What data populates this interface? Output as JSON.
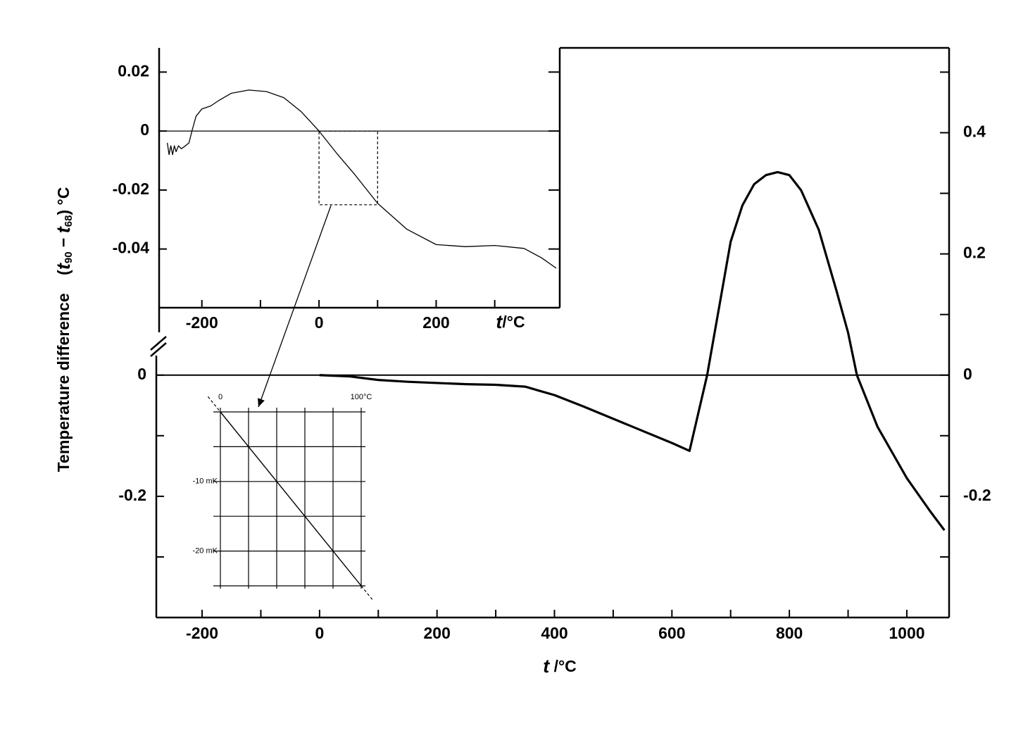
{
  "chart_data": [
    {
      "type": "line",
      "xlabel_parts": [
        "t",
        " /°C"
      ],
      "ylabel": "Temperature difference",
      "ylabel_parts": [
        "(",
        "t",
        "90",
        " − ",
        "t",
        "68",
        ") °C"
      ],
      "xlim": [
        -278,
        1072
      ],
      "ylim": [
        -0.4,
        0.54
      ],
      "y2lim": [
        -0.4,
        0.54
      ],
      "xticks": [
        -200,
        {
          "value": -100,
          "label": null
        },
        0,
        {
          "value": 100,
          "label": null
        },
        200,
        {
          "value": 300,
          "label": null
        },
        400,
        {
          "value": 500,
          "label": null
        },
        600,
        {
          "value": 700,
          "label": null
        },
        800,
        {
          "value": 900,
          "label": null
        },
        1000
      ],
      "yticks": [
        {
          "value": -0.3,
          "label": null
        },
        -0.2,
        {
          "value": -0.1,
          "label": null
        },
        0
      ],
      "y2ticks": [
        {
          "value": -0.3,
          "label": null
        },
        -0.2,
        {
          "value": -0.1,
          "label": null
        },
        0,
        {
          "value": 0.1,
          "label": null
        },
        0.2,
        {
          "value": 0.3,
          "label": null
        },
        0.4,
        {
          "value": 0.5,
          "label": null
        }
      ],
      "zero_line": true,
      "x": [
        0,
        50,
        100,
        150,
        200,
        250,
        300,
        350,
        400,
        450,
        500,
        550,
        600,
        630,
        660,
        700,
        720,
        740,
        760,
        780,
        800,
        820,
        850,
        880,
        900,
        915,
        950,
        1000,
        1040,
        1064
      ],
      "series": [
        {
          "color": "#000000",
          "values": [
            0,
            -0.002,
            -0.008,
            -0.011,
            -0.013,
            -0.015,
            -0.016,
            -0.019,
            -0.033,
            -0.052,
            -0.072,
            -0.092,
            -0.112,
            -0.125,
            0.0,
            0.22,
            0.28,
            0.315,
            0.33,
            0.335,
            0.33,
            0.305,
            0.24,
            0.14,
            0.07,
            0.0,
            -0.085,
            -0.17,
            -0.225,
            -0.256
          ]
        }
      ]
    },
    {
      "type": "line",
      "xlabel_parts": [
        "t",
        "/°C"
      ],
      "xlim": [
        -273,
        411
      ],
      "ylim": [
        -0.0599,
        0.0282
      ],
      "xticks": [
        -200,
        {
          "value": -100,
          "label": null
        },
        0,
        {
          "value": 100,
          "label": null
        },
        200,
        {
          "value": 300,
          "label": null
        }
      ],
      "yticks": [
        0.02,
        0,
        -0.02,
        -0.04
      ],
      "zero_line": true,
      "zoom_box": {
        "x": [
          0,
          100
        ],
        "y": [
          -0.025,
          0
        ]
      },
      "x": [
        -259,
        -256,
        -253,
        -250,
        -247,
        -244,
        -240,
        -235,
        -228,
        -222,
        -217,
        -210,
        -200,
        -185,
        -170,
        -150,
        -120,
        -90,
        -60,
        -30,
        0,
        30,
        60,
        100,
        150,
        200,
        250,
        300,
        350,
        380,
        405
      ],
      "series": [
        {
          "color": "#000000",
          "values": [
            -0.004,
            -0.008,
            -0.005,
            -0.008,
            -0.005,
            -0.007,
            -0.005,
            -0.006,
            -0.005,
            -0.004,
            0.0,
            0.005,
            0.0075,
            0.0085,
            0.0105,
            0.0128,
            0.0139,
            0.0134,
            0.0113,
            0.0065,
            0.0,
            -0.0075,
            -0.0145,
            -0.0245,
            -0.0333,
            -0.0385,
            -0.0392,
            -0.0388,
            -0.0398,
            -0.043,
            -0.0465
          ]
        }
      ]
    },
    {
      "type": "line",
      "xlim": [
        0,
        100
      ],
      "ylim": [
        -25,
        0
      ],
      "xticks": [
        0,
        {
          "value": 20,
          "label": null
        },
        {
          "value": 40,
          "label": null
        },
        {
          "value": 60,
          "label": null
        },
        {
          "value": 80,
          "label": null
        },
        {
          "value": 100,
          "label": "100°C"
        }
      ],
      "yticks": [
        {
          "value": 0,
          "label": null
        },
        {
          "value": -5,
          "label": null
        },
        {
          "value": -10,
          "label": "-10 mK"
        },
        {
          "value": -15,
          "label": null
        },
        {
          "value": -20,
          "label": "-20 mK"
        },
        {
          "value": -25,
          "label": null
        }
      ],
      "grid": true,
      "x": [
        0,
        100
      ],
      "series": [
        {
          "color": "#000000",
          "values": [
            0,
            -25
          ]
        }
      ]
    }
  ]
}
